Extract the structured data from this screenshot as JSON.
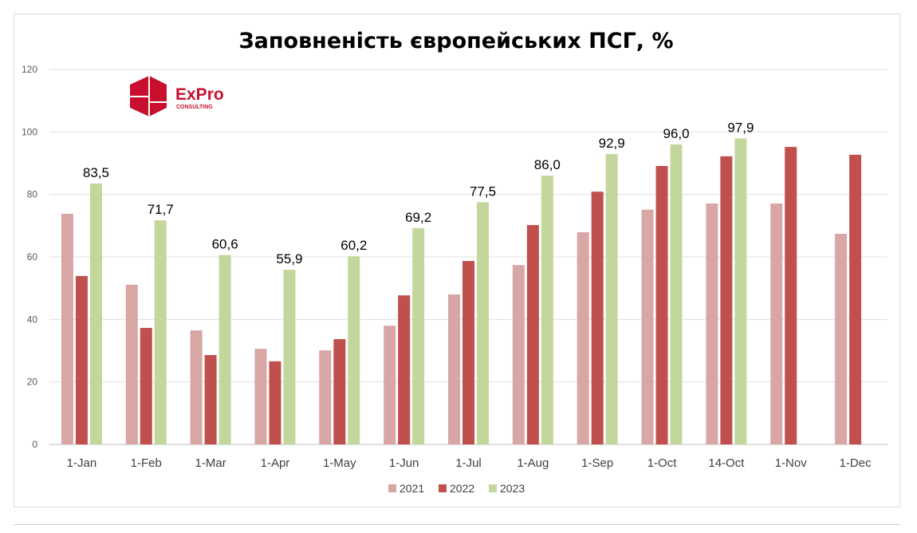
{
  "chart_data": {
    "type": "bar",
    "title": "Заповненість європейських ПСГ, %",
    "xlabel": "",
    "ylabel": "",
    "ylim": [
      0,
      120
    ],
    "yticks": [
      0,
      20,
      40,
      60,
      80,
      100,
      120
    ],
    "grid": true,
    "legend": "bottom",
    "categories": [
      "1-Jan",
      "1-Feb",
      "1-Mar",
      "1-Apr",
      "1-May",
      "1-Jun",
      "1-Jul",
      "1-Aug",
      "1-Sep",
      "1-Oct",
      "14-Oct",
      "1-Nov",
      "1-Dec"
    ],
    "series": [
      {
        "name": "2021",
        "color": "#d9a6a6",
        "values": [
          73.8,
          51.1,
          36.5,
          30.6,
          30.1,
          38.0,
          48.0,
          57.4,
          67.9,
          75.1,
          77.1,
          77.1,
          67.4
        ]
      },
      {
        "name": "2022",
        "color": "#c0504d",
        "values": [
          53.9,
          37.3,
          28.6,
          26.6,
          33.7,
          47.7,
          58.7,
          70.2,
          80.9,
          89.1,
          92.2,
          95.2,
          92.7
        ]
      },
      {
        "name": "2023",
        "color": "#c3d69b",
        "values": [
          83.5,
          71.7,
          60.6,
          55.9,
          60.2,
          69.2,
          77.5,
          86.0,
          92.9,
          96.0,
          97.9,
          null,
          null
        ]
      }
    ],
    "data_labels": [
      "83,5",
      "71,7",
      "60,6",
      "55,9",
      "60,2",
      "69,2",
      "77,5",
      "86,0",
      "92,9",
      "96,0",
      "97,9"
    ]
  },
  "logo": {
    "name": "ExPro",
    "sub": "CONSULTING"
  }
}
